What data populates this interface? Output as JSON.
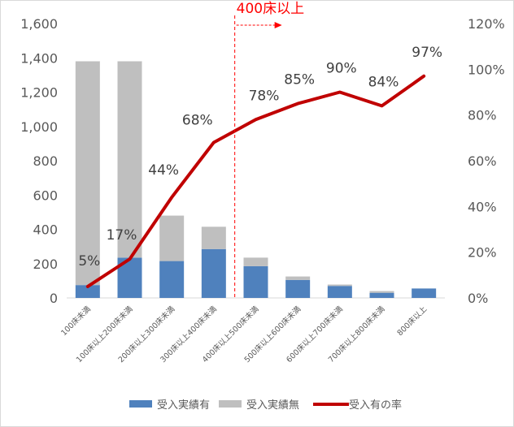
{
  "chart_data": {
    "type": "bar+line",
    "categories": [
      "100床未満",
      "100床以上200床未満",
      "200床以上300床未満",
      "300床以上400床未満",
      "400床以上500床未満",
      "500床以上600床未満",
      "600床以上700床未満",
      "700床以上800床未満",
      "800床以上"
    ],
    "series": [
      {
        "name": "受入実績有",
        "type": "bar",
        "stack": "a",
        "color": "#4f81bd",
        "values": [
          75,
          235,
          215,
          285,
          185,
          105,
          70,
          30,
          55
        ]
      },
      {
        "name": "受入実績無",
        "type": "bar",
        "stack": "a",
        "color": "#bfbfbf",
        "values": [
          1305,
          1145,
          265,
          130,
          50,
          20,
          8,
          10,
          0
        ]
      },
      {
        "name": "受入有の率",
        "type": "line",
        "axis": "right",
        "color": "#c00000",
        "values": [
          5,
          17,
          44,
          68,
          78,
          85,
          90,
          84,
          97
        ],
        "labels": [
          "5%",
          "17%",
          "44%",
          "68%",
          "78%",
          "85%",
          "90%",
          "84%",
          "97%"
        ]
      }
    ],
    "y_left": {
      "min": 0,
      "max": 1600,
      "step": 200,
      "tick_labels": [
        "0",
        "200",
        "400",
        "600",
        "800",
        "1,000",
        "1,200",
        "1,400",
        "1,600"
      ]
    },
    "y_right": {
      "min": 0,
      "max": 120,
      "step": 20,
      "tick_labels": [
        "0%",
        "20%",
        "40%",
        "60%",
        "80%",
        "100%",
        "120%"
      ]
    },
    "annotation": {
      "text": "400床以上",
      "color": "#ff0000",
      "divider_after_category": 3
    },
    "legend_position": "bottom",
    "grid": false
  }
}
